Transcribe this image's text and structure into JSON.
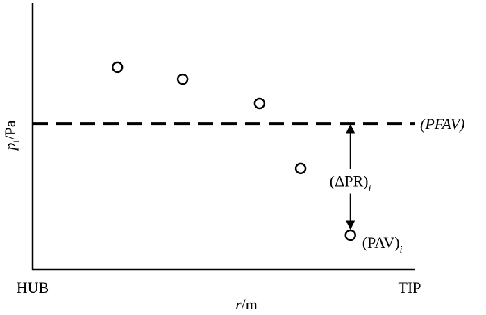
{
  "chart_data": {
    "type": "scatter",
    "xlabel": {
      "symbol": "r",
      "unit": "/m"
    },
    "ylabel": {
      "symbol": "p",
      "subscript": "t",
      "unit": "/Pa"
    },
    "xlim": [
      0,
      1
    ],
    "ylim": [
      0,
      1
    ],
    "xticks": [
      {
        "value": 0,
        "label": "HUB"
      },
      {
        "value": 1,
        "label": "TIP"
      }
    ],
    "x": [
      0.225,
      0.398,
      0.602,
      0.711,
      0.843
    ],
    "values": [
      0.76,
      0.715,
      0.624,
      0.379,
      0.128
    ],
    "color": "#000000",
    "reference_line": {
      "value": 0.548,
      "label": "(PFAV)",
      "style": "dashed"
    },
    "difference_label": {
      "text": "(ΔPR)",
      "subscript": "i"
    },
    "point_label": {
      "text": "(PAV)",
      "subscript": "i"
    }
  }
}
